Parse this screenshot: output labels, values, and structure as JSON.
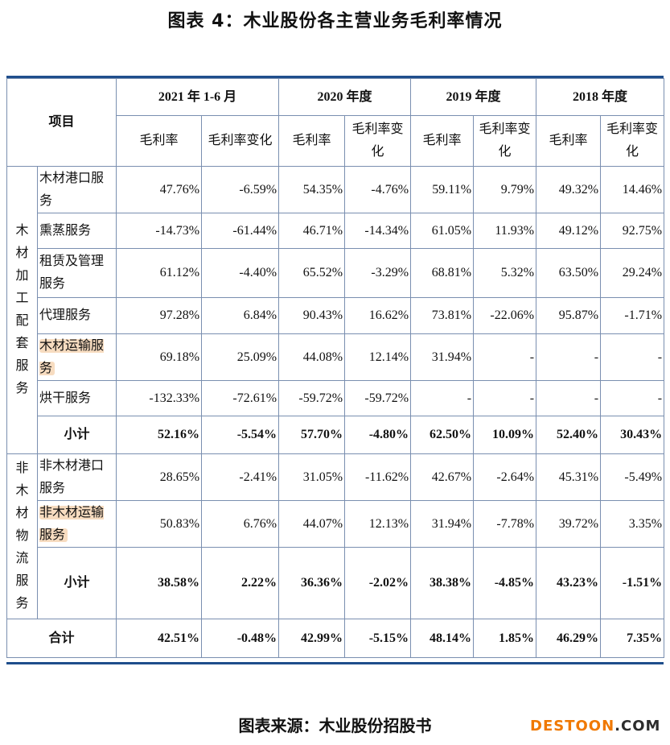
{
  "title": "图表 4：木业股份各主营业务毛利率情况",
  "header": {
    "item": "项目",
    "periods": [
      "2021 年 1-6 月",
      "2020 年度",
      "2019 年度",
      "2018 年度"
    ],
    "sub": [
      "毛利率",
      "毛利率变化",
      "毛利率",
      "毛利率变化",
      "毛利率",
      "毛利率变化",
      "毛利率",
      "毛利率变化"
    ]
  },
  "groups": [
    {
      "name": [
        "木",
        "材",
        "加",
        "工",
        "配",
        "套",
        "服",
        "务"
      ],
      "rows": [
        {
          "label": "木材港口服务",
          "values": [
            "47.76%",
            "-6.59%",
            "54.35%",
            "-4.76%",
            "59.11%",
            "9.79%",
            "49.32%",
            "14.46%"
          ]
        },
        {
          "label": "熏蒸服务",
          "values": [
            "-14.73%",
            "-61.44%",
            "46.71%",
            "-14.34%",
            "61.05%",
            "11.93%",
            "49.12%",
            "92.75%"
          ]
        },
        {
          "label": "租赁及管理服务",
          "values": [
            "61.12%",
            "-4.40%",
            "65.52%",
            "-3.29%",
            "68.81%",
            "5.32%",
            "63.50%",
            "29.24%"
          ]
        },
        {
          "label": "代理服务",
          "values": [
            "97.28%",
            "6.84%",
            "90.43%",
            "16.62%",
            "73.81%",
            "-22.06%",
            "95.87%",
            "-1.71%"
          ]
        },
        {
          "label": "木材运输服务",
          "values": [
            "69.18%",
            "25.09%",
            "44.08%",
            "12.14%",
            "31.94%",
            "-",
            "-",
            "-"
          ]
        },
        {
          "label": "烘干服务",
          "values": [
            "-132.33%",
            "-72.61%",
            "-59.72%",
            "-59.72%",
            "-",
            "-",
            "-",
            "-"
          ]
        }
      ],
      "subtotal": {
        "label": "小计",
        "values": [
          "52.16%",
          "-5.54%",
          "57.70%",
          "-4.80%",
          "62.50%",
          "10.09%",
          "52.40%",
          "30.43%"
        ]
      }
    },
    {
      "name": [
        "非",
        "木",
        "材",
        "物",
        "流",
        "服",
        "务"
      ],
      "rows": [
        {
          "label": "非木材港口服务",
          "values": [
            "28.65%",
            "-2.41%",
            "31.05%",
            "-11.62%",
            "42.67%",
            "-2.64%",
            "45.31%",
            "-5.49%"
          ]
        },
        {
          "label": "非木材运输服务",
          "values": [
            "50.83%",
            "6.76%",
            "44.07%",
            "12.13%",
            "31.94%",
            "-7.78%",
            "39.72%",
            "3.35%"
          ]
        }
      ],
      "subtotal": {
        "label": "小计",
        "values": [
          "38.58%",
          "2.22%",
          "36.36%",
          "-2.02%",
          "38.38%",
          "-4.85%",
          "43.23%",
          "-1.51%"
        ]
      }
    }
  ],
  "total": {
    "label": "合计",
    "values": [
      "42.51%",
      "-0.48%",
      "42.99%",
      "-5.15%",
      "48.14%",
      "1.85%",
      "46.29%",
      "7.35%"
    ]
  },
  "source": "图表来源：木业股份招股书",
  "watermark": {
    "part1": "DESTOON",
    "part2": ".COM"
  },
  "colors": {
    "rule": "#1f4e8c",
    "highlight": "#f7dcc0",
    "watermark": "#f07800"
  }
}
